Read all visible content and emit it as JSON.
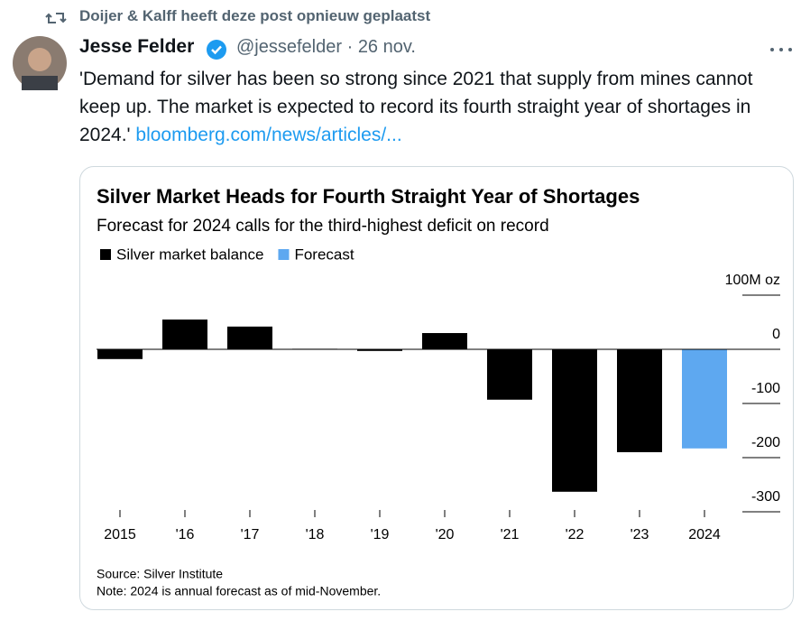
{
  "repost_label": "Doijer & Kalff heeft deze post opnieuw geplaatst",
  "author": {
    "name": "Jesse Felder",
    "handle": "@jessefelder",
    "date": "26 nov."
  },
  "tweet": {
    "text": "'Demand for silver has been so strong since 2021 that supply from mines cannot keep up. The market is expected to record its fourth straight year of shortages in 2024.'",
    "link": "bloomberg.com/news/articles/..."
  },
  "chart_data": {
    "type": "bar",
    "title": "Silver Market Heads for Fourth Straight Year of Shortages",
    "subtitle": "Forecast for 2024 calls for the third-highest deficit on record",
    "categories": [
      "2015",
      "'16",
      "'17",
      "'18",
      "'19",
      "'20",
      "'21",
      "'22",
      "'23",
      "2024"
    ],
    "series": [
      {
        "name": "Silver market balance",
        "color": "#000000",
        "values": [
          -18,
          55,
          42,
          1,
          -3,
          30,
          -93,
          -263,
          -190,
          null
        ]
      },
      {
        "name": "Forecast",
        "color": "#5ea8f0",
        "values": [
          null,
          null,
          null,
          null,
          null,
          null,
          null,
          null,
          null,
          -183
        ]
      }
    ],
    "ylim": [
      -300,
      100
    ],
    "yticks": [
      {
        "value": 100,
        "label": "100M oz"
      },
      0,
      -100,
      -200,
      -300
    ],
    "grid": true,
    "notes": [
      "Source: Silver Institute",
      "Note: 2024 is annual forecast as of mid-November."
    ]
  }
}
